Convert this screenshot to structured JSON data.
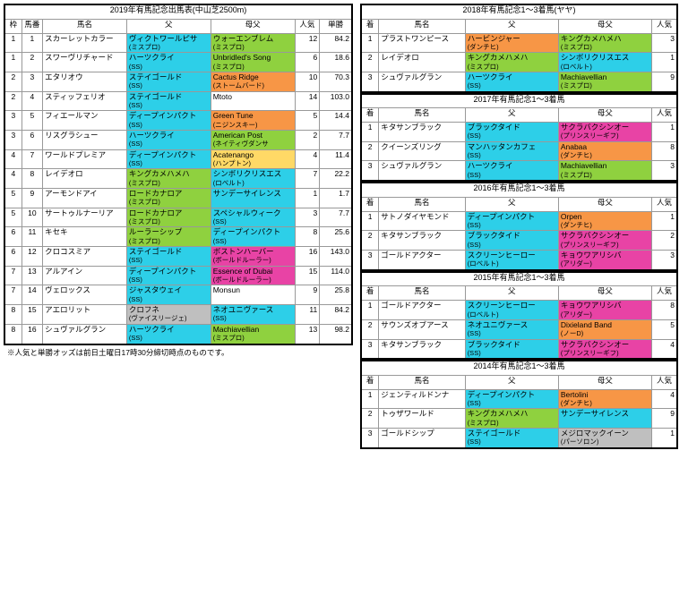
{
  "main": {
    "title": "2019年有馬記念出馬表(中山芝2500m)",
    "headers": [
      "枠",
      "馬番",
      "馬名",
      "父",
      "母父",
      "人気",
      "単勝"
    ],
    "rows": [
      {
        "w": "1",
        "n": "1",
        "name": "スカーレットカラー",
        "sire": "ヴィクトワールピサ",
        "sire_sub": "(ミスプロ)",
        "sire_c": "c-cyan",
        "dam": "ウォーエンブレム",
        "dam_sub": "(ミスプロ)",
        "dam_c": "c-green",
        "pop": "12",
        "odds": "84.2"
      },
      {
        "w": "1",
        "n": "2",
        "name": "スワーヴリチャード",
        "sire": "ハーツクライ",
        "sire_sub": "(SS)",
        "sire_c": "c-cyan",
        "dam": "Unbridled's Song",
        "dam_sub": "(ミスプロ)",
        "dam_c": "c-green",
        "pop": "6",
        "odds": "18.6"
      },
      {
        "w": "2",
        "n": "3",
        "name": "エタリオウ",
        "sire": "ステイゴールド",
        "sire_sub": "(SS)",
        "sire_c": "c-cyan",
        "dam": "Cactus Ridge",
        "dam_sub": "(ストームバード)",
        "dam_c": "c-orange",
        "pop": "10",
        "odds": "70.3"
      },
      {
        "w": "2",
        "n": "4",
        "name": "スティッフェリオ",
        "sire": "ステイゴールド",
        "sire_sub": "(SS)",
        "sire_c": "c-cyan",
        "dam": "Mtoto",
        "dam_sub": "",
        "dam_c": "",
        "pop": "14",
        "odds": "103.0"
      },
      {
        "w": "3",
        "n": "5",
        "name": "フィエールマン",
        "sire": "ディープインパクト",
        "sire_sub": "(SS)",
        "sire_c": "c-cyan",
        "dam": "Green Tune",
        "dam_sub": "(ニジンスキー)",
        "dam_c": "c-orange",
        "pop": "5",
        "odds": "14.4"
      },
      {
        "w": "3",
        "n": "6",
        "name": "リスグラシュー",
        "sire": "ハーツクライ",
        "sire_sub": "(SS)",
        "sire_c": "c-cyan",
        "dam": "American Post",
        "dam_sub": "(ネイティヴダンサ",
        "dam_c": "c-green",
        "pop": "2",
        "odds": "7.7"
      },
      {
        "w": "4",
        "n": "7",
        "name": "ワールドプレミア",
        "sire": "ディープインパクト",
        "sire_sub": "(SS)",
        "sire_c": "c-cyan",
        "dam": "Acatenango",
        "dam_sub": "(ハンプトン)",
        "dam_c": "c-yellow",
        "pop": "4",
        "odds": "11.4"
      },
      {
        "w": "4",
        "n": "8",
        "name": "レイデオロ",
        "sire": "キングカメハメハ",
        "sire_sub": "(ミスプロ)",
        "sire_c": "c-green",
        "dam": "シンボリクリスエス",
        "dam_sub": "(ロベルト)",
        "dam_c": "c-cyan",
        "pop": "7",
        "odds": "22.2"
      },
      {
        "w": "5",
        "n": "9",
        "name": "アーモンドアイ",
        "sire": "ロードカナロア",
        "sire_sub": "(ミスプロ)",
        "sire_c": "c-green",
        "dam": "サンデーサイレンス",
        "dam_sub": "",
        "dam_c": "c-cyan",
        "pop": "1",
        "odds": "1.7"
      },
      {
        "w": "5",
        "n": "10",
        "name": "サートゥルナーリア",
        "sire": "ロードカナロア",
        "sire_sub": "(ミスプロ)",
        "sire_c": "c-green",
        "dam": "スペシャルウィーク",
        "dam_sub": "(SS)",
        "dam_c": "c-cyan",
        "pop": "3",
        "odds": "7.7"
      },
      {
        "w": "6",
        "n": "11",
        "name": "キセキ",
        "sire": "ルーラーシップ",
        "sire_sub": "(ミスプロ)",
        "sire_c": "c-green",
        "dam": "ディープインパクト",
        "dam_sub": "(SS)",
        "dam_c": "c-cyan",
        "pop": "8",
        "odds": "25.6"
      },
      {
        "w": "6",
        "n": "12",
        "name": "クロコスミア",
        "sire": "ステイゴールド",
        "sire_sub": "(SS)",
        "sire_c": "c-cyan",
        "dam": "ボストンハーバー",
        "dam_sub": "(ボールドルーラー)",
        "dam_c": "c-pink",
        "pop": "16",
        "odds": "143.0"
      },
      {
        "w": "7",
        "n": "13",
        "name": "アルアイン",
        "sire": "ディープインパクト",
        "sire_sub": "(SS)",
        "sire_c": "c-cyan",
        "dam": "Essence of Dubai",
        "dam_sub": "(ボールドルーラー)",
        "dam_c": "c-pink",
        "pop": "15",
        "odds": "114.0"
      },
      {
        "w": "7",
        "n": "14",
        "name": "ヴェロックス",
        "sire": "ジャスタウェイ",
        "sire_sub": "(SS)",
        "sire_c": "c-cyan",
        "dam": "Monsun",
        "dam_sub": "",
        "dam_c": "",
        "pop": "9",
        "odds": "25.8"
      },
      {
        "w": "8",
        "n": "15",
        "name": "アエロリット",
        "sire": "クロフネ",
        "sire_sub": "(ヴァイスリージェ)",
        "sire_c": "c-gray",
        "dam": "ネオユニヴァース",
        "dam_sub": "(SS)",
        "dam_c": "c-cyan",
        "pop": "11",
        "odds": "84.2"
      },
      {
        "w": "8",
        "n": "16",
        "name": "シュヴァルグラン",
        "sire": "ハーツクライ",
        "sire_sub": "(SS)",
        "sire_c": "c-cyan",
        "dam": "Machiavellian",
        "dam_sub": "(ミスプロ)",
        "dam_c": "c-green",
        "pop": "13",
        "odds": "98.2"
      }
    ],
    "note": "※人気と単勝オッズは前日土曜日17時30分締切時点のものです。"
  },
  "years": [
    {
      "title": "2018年有馬記念1～3着馬(ヤヤ)",
      "headers": [
        "着",
        "馬名",
        "父",
        "母父",
        "人気"
      ],
      "rows": [
        {
          "p": "1",
          "name": "プラストワンピース",
          "sire": "ハービンジャー",
          "sire_sub": "(ダンチヒ)",
          "sire_c": "c-orange",
          "dam": "キングカメハメハ",
          "dam_sub": "(ミスプロ)",
          "dam_c": "c-green",
          "pop": "3"
        },
        {
          "p": "2",
          "name": "レイデオロ",
          "sire": "キングカメハメハ",
          "sire_sub": "(ミスプロ)",
          "sire_c": "c-green",
          "dam": "シンボリクリスエス",
          "dam_sub": "(ロベルト)",
          "dam_c": "c-cyan",
          "pop": "1"
        },
        {
          "p": "3",
          "name": "シュヴァルグラン",
          "sire": "ハーツクライ",
          "sire_sub": "(SS)",
          "sire_c": "c-cyan",
          "dam": "Machiavellian",
          "dam_sub": "(ミスプロ)",
          "dam_c": "c-green",
          "pop": "9"
        }
      ]
    },
    {
      "title": "2017年有馬記念1～3着馬",
      "headers": [
        "着",
        "馬名",
        "父",
        "母父",
        "人気"
      ],
      "rows": [
        {
          "p": "1",
          "name": "キタサンブラック",
          "sire": "ブラックタイド",
          "sire_sub": "(SS)",
          "sire_c": "c-cyan",
          "dam": "サクラバクシンオー",
          "dam_sub": "(プリンスリーギフ)",
          "dam_c": "c-pink",
          "pop": "1"
        },
        {
          "p": "2",
          "name": "クイーンズリング",
          "sire": "マンハッタンカフェ",
          "sire_sub": "(SS)",
          "sire_c": "c-cyan",
          "dam": "Anabaa",
          "dam_sub": "(ダンチヒ)",
          "dam_c": "c-orange",
          "pop": "8"
        },
        {
          "p": "3",
          "name": "シュヴァルグラン",
          "sire": "ハーツクライ",
          "sire_sub": "(SS)",
          "sire_c": "c-cyan",
          "dam": "Machiavellian",
          "dam_sub": "(ミスプロ)",
          "dam_c": "c-green",
          "pop": "3"
        }
      ]
    },
    {
      "title": "2016年有馬記念1～3着馬",
      "headers": [
        "着",
        "馬名",
        "父",
        "母父",
        "人気"
      ],
      "rows": [
        {
          "p": "1",
          "name": "サトノダイヤモンド",
          "sire": "ディープインパクト",
          "sire_sub": "(SS)",
          "sire_c": "c-cyan",
          "dam": "Orpen",
          "dam_sub": "(ダンチヒ)",
          "dam_c": "c-orange",
          "pop": "1"
        },
        {
          "p": "2",
          "name": "キタサンブラック",
          "sire": "ブラックタイド",
          "sire_sub": "(SS)",
          "sire_c": "c-cyan",
          "dam": "サクラバクシンオー",
          "dam_sub": "(プリンスリーギフ)",
          "dam_c": "c-pink",
          "pop": "2"
        },
        {
          "p": "3",
          "name": "ゴールドアクター",
          "sire": "スクリーンヒーロー",
          "sire_sub": "(ロベルト)",
          "sire_c": "c-cyan",
          "dam": "キョウワアリシバ",
          "dam_sub": "(アリダー)",
          "dam_c": "c-pink",
          "pop": "3"
        }
      ]
    },
    {
      "title": "2015年有馬記念1～3着馬",
      "headers": [
        "着",
        "馬名",
        "父",
        "母父",
        "人気"
      ],
      "rows": [
        {
          "p": "1",
          "name": "ゴールドアクター",
          "sire": "スクリーンヒーロー",
          "sire_sub": "(ロベルト)",
          "sire_c": "c-cyan",
          "dam": "キョウワアリシバ",
          "dam_sub": "(アリダー)",
          "dam_c": "c-pink",
          "pop": "8"
        },
        {
          "p": "2",
          "name": "サウンズオブアース",
          "sire": "ネオユニヴァース",
          "sire_sub": "(SS)",
          "sire_c": "c-cyan",
          "dam": "Dixieland Band",
          "dam_sub": "(ノーD)",
          "dam_c": "c-orange",
          "pop": "5"
        },
        {
          "p": "3",
          "name": "キタサンブラック",
          "sire": "ブラックタイド",
          "sire_sub": "(SS)",
          "sire_c": "c-cyan",
          "dam": "サクラバクシンオー",
          "dam_sub": "(プリンスリーギフ)",
          "dam_c": "c-pink",
          "pop": "4"
        }
      ]
    },
    {
      "title": "2014年有馬記念1～3着馬",
      "headers": [
        "着",
        "馬名",
        "父",
        "母父",
        "人気"
      ],
      "rows": [
        {
          "p": "1",
          "name": "ジェンティルドンナ",
          "sire": "ディープインパクト",
          "sire_sub": "(SS)",
          "sire_c": "c-cyan",
          "dam": "Bertolini",
          "dam_sub": "(ダンチヒ)",
          "dam_c": "c-orange",
          "pop": "4"
        },
        {
          "p": "2",
          "name": "トゥザワールド",
          "sire": "キングカメハメハ",
          "sire_sub": "(ミスプロ)",
          "sire_c": "c-green",
          "dam": "サンデーサイレンス",
          "dam_sub": "",
          "dam_c": "c-cyan",
          "pop": "9"
        },
        {
          "p": "3",
          "name": "ゴールドシップ",
          "sire": "ステイゴールド",
          "sire_sub": "(SS)",
          "sire_c": "c-cyan",
          "dam": "メジロマックイーン",
          "dam_sub": "(パーソロン)",
          "dam_c": "c-gray",
          "pop": "1"
        }
      ]
    }
  ]
}
